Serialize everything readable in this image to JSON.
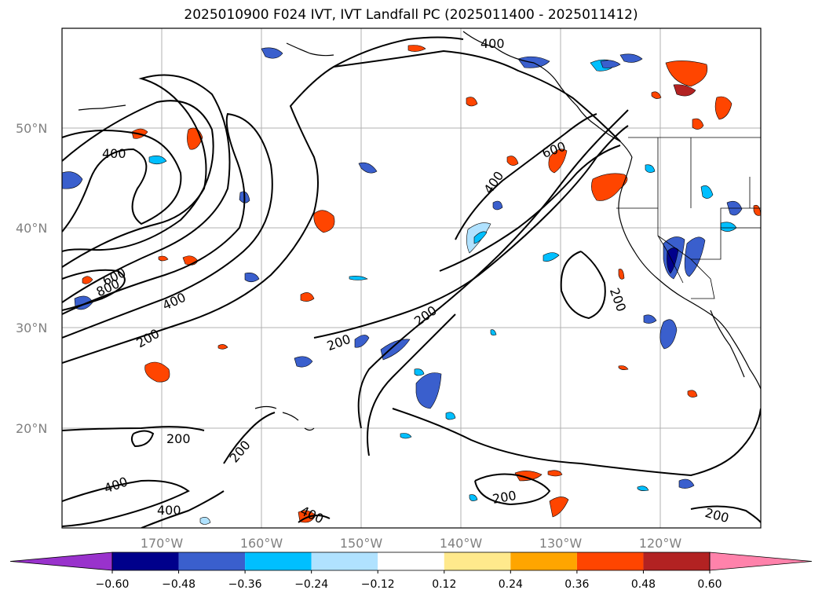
{
  "title": "2025010900 F024 IVT, IVT Landfall PC (2025011400 - 2025011412)",
  "map": {
    "lat_ticks": [
      "20°N",
      "30°N",
      "40°N",
      "50°N"
    ],
    "lon_ticks": [
      "170°W",
      "160°W",
      "150°W",
      "140°W",
      "130°W",
      "120°W"
    ],
    "extent": {
      "lon": [
        -180,
        -110
      ],
      "lat": [
        10,
        60
      ]
    },
    "gridlines": true
  },
  "contour_labels": [
    "400",
    "600",
    "800",
    "400",
    "200",
    "200",
    "200",
    "200",
    "200",
    "400",
    "400",
    "400",
    "400",
    "200",
    "600",
    "400",
    "200",
    "200",
    "200"
  ],
  "colorbar": {
    "ticks": [
      "−0.60",
      "−0.48",
      "−0.36",
      "−0.24",
      "−0.12",
      "0.12",
      "0.24",
      "0.36",
      "0.48",
      "0.60"
    ],
    "colors": [
      "#9932CC",
      "#00008B",
      "#3A5FCD",
      "#00BFFF",
      "#B0E2FF",
      "#FFFFFF",
      "#FFE98C",
      "#FFA500",
      "#FF4500",
      "#B22222",
      "#FF82AB"
    ]
  }
}
